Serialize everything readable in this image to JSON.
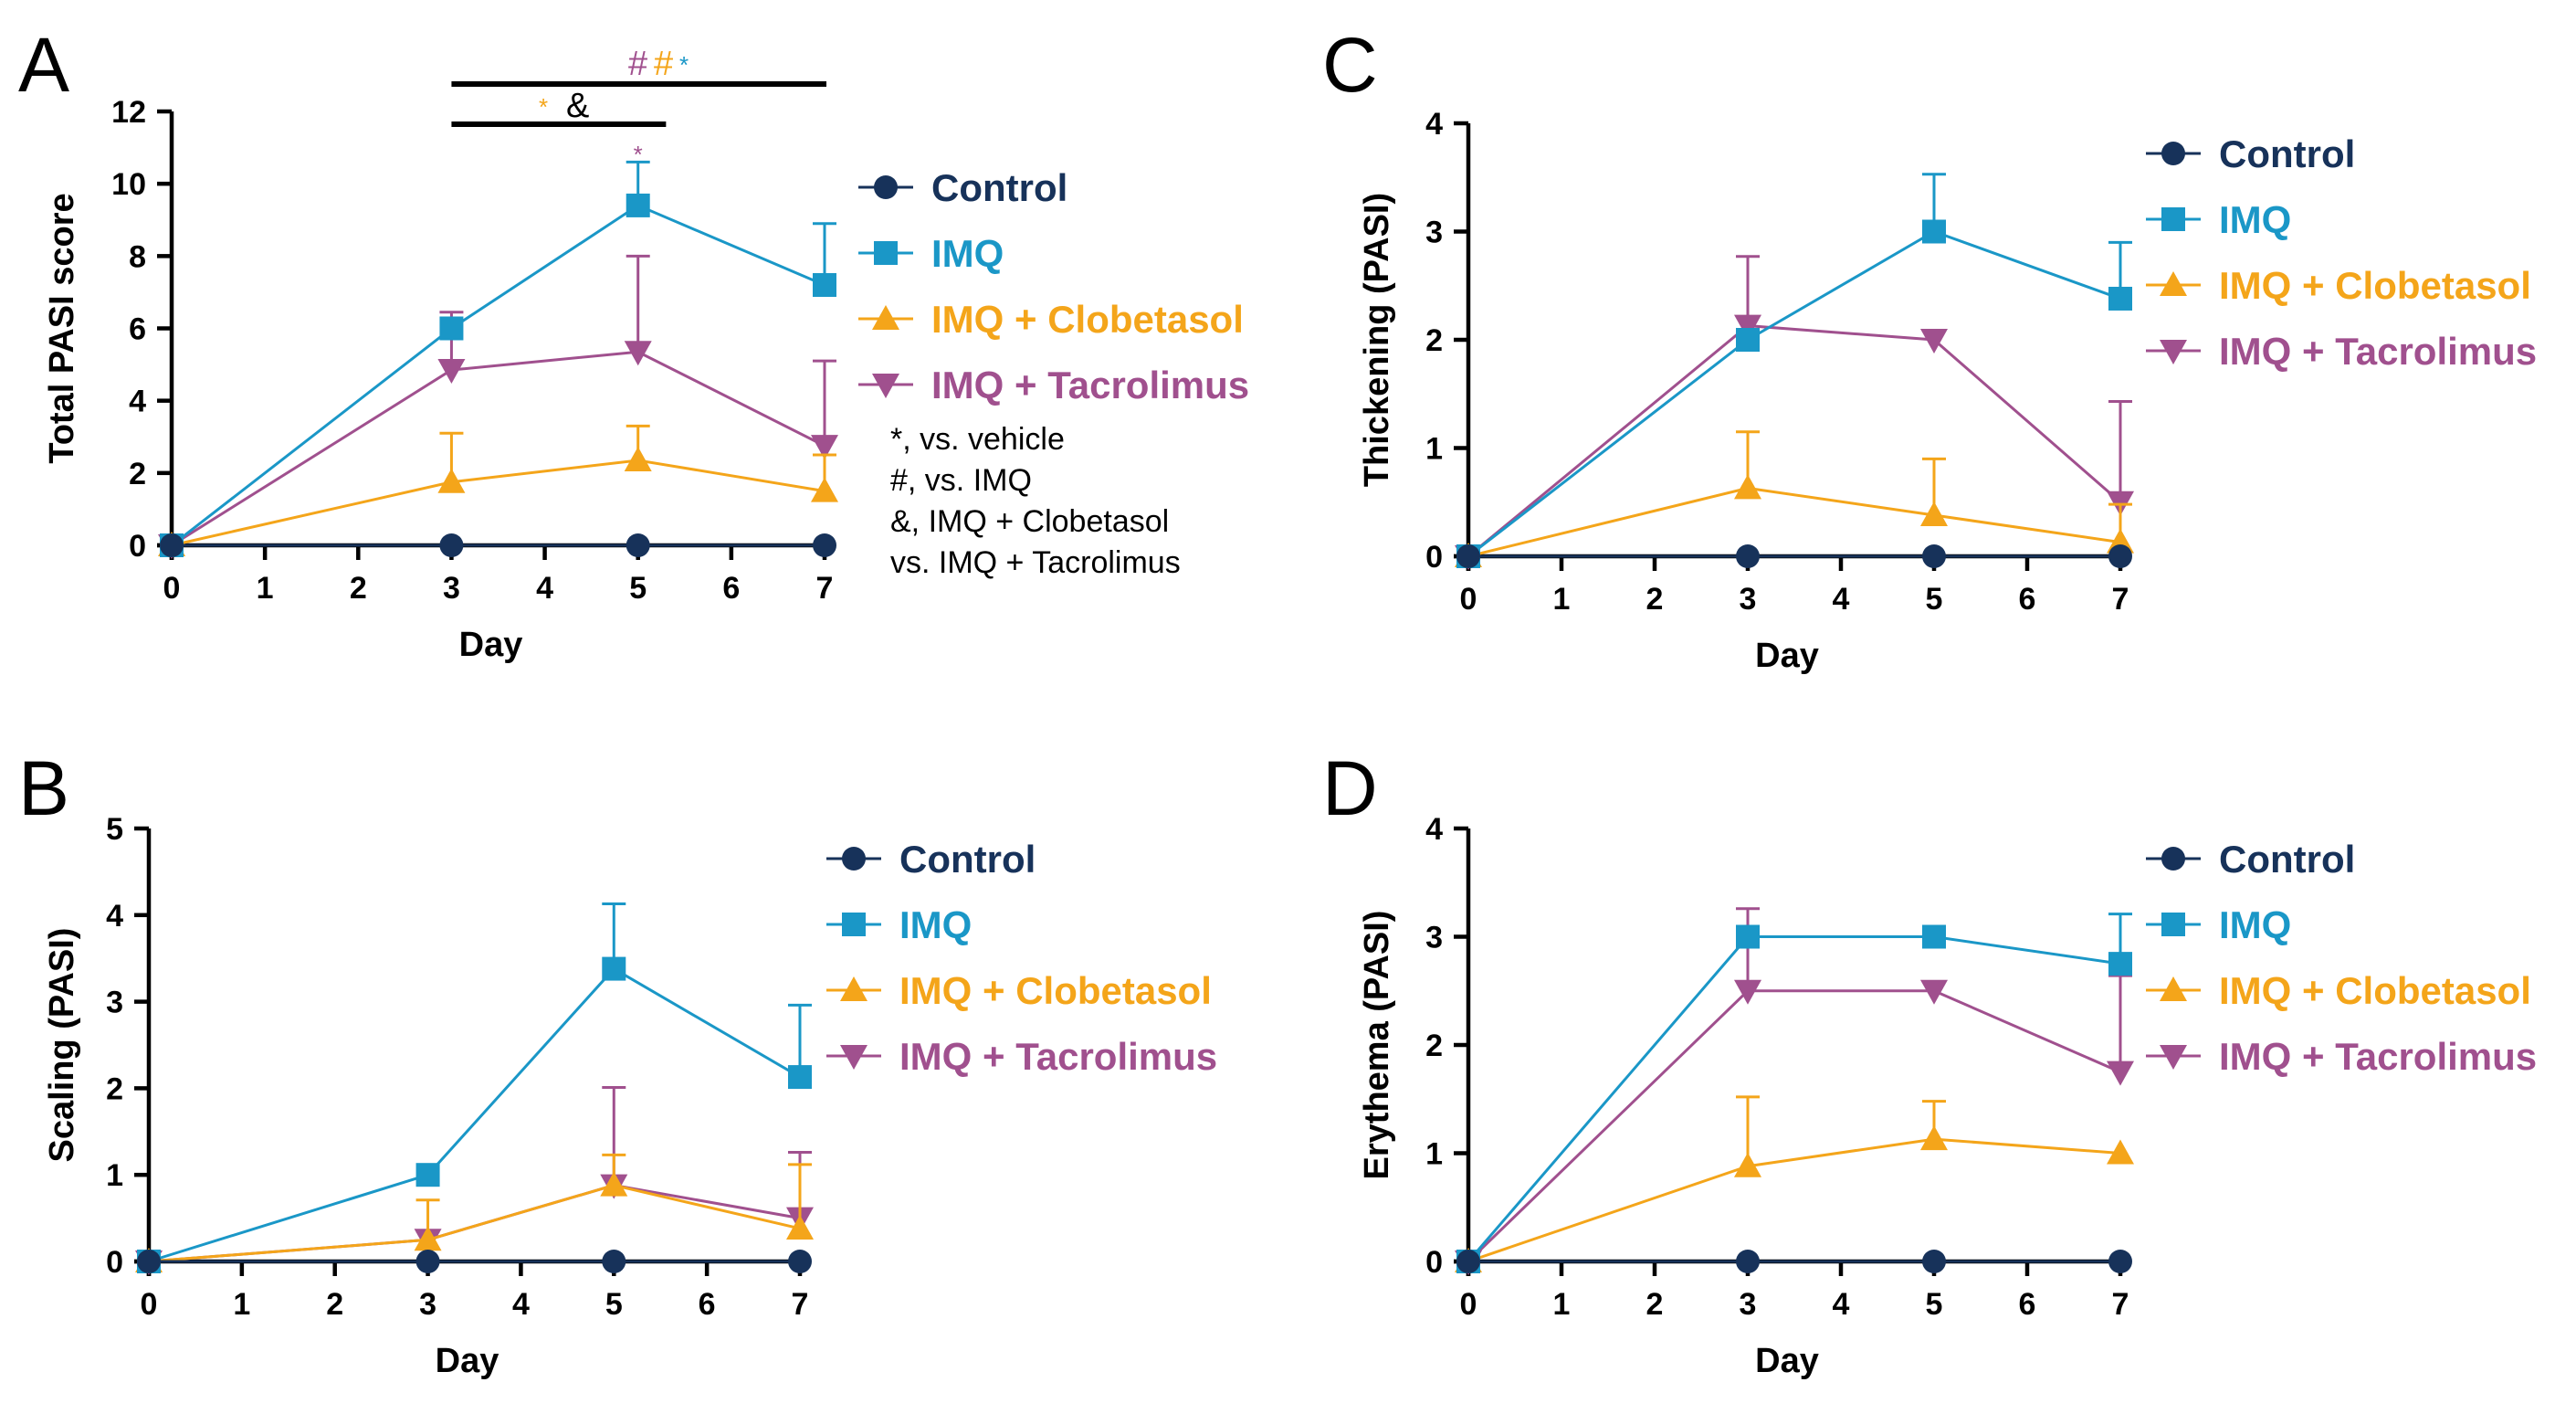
{
  "colors": {
    "Control": "#17325a",
    "IMQ": "#1a97c7",
    "IMQ + Clobetasol": "#f4a51a",
    "IMQ + Tacrolimus": "#a0508e"
  },
  "chart_data": [
    {
      "type": "line",
      "panel": "A",
      "xlabel": "Day",
      "ylabel": "Total PASI score",
      "x_ticks": [
        "0",
        "1",
        "2",
        "3",
        "4",
        "5",
        "6",
        "7"
      ],
      "y_ticks": [
        "0",
        "2",
        "4",
        "6",
        "8",
        "10",
        "12"
      ],
      "xlim": [
        0,
        7
      ],
      "ylim": [
        0,
        12
      ],
      "x": [
        0,
        3,
        5,
        7
      ],
      "series": [
        {
          "name": "Control",
          "marker": "circle",
          "values": [
            0,
            0,
            0,
            0
          ],
          "errors": [
            0,
            0,
            0,
            0
          ]
        },
        {
          "name": "IMQ",
          "marker": "square",
          "values": [
            0,
            6.0,
            9.4,
            7.2
          ],
          "errors": [
            0,
            0,
            1.2,
            1.7
          ]
        },
        {
          "name": "IMQ + Clobetasol",
          "marker": "triangle-up",
          "values": [
            0,
            1.75,
            2.35,
            1.5
          ],
          "errors": [
            0,
            1.35,
            0.95,
            1.0
          ]
        },
        {
          "name": "IMQ + Tacrolimus",
          "marker": "triangle-down",
          "values": [
            0,
            4.85,
            5.35,
            2.75
          ],
          "errors": [
            0,
            1.6,
            2.65,
            2.35
          ]
        }
      ],
      "significance": {
        "long_bar_symbols": [
          {
            "text": "#",
            "series": "IMQ + Tacrolimus"
          },
          {
            "text": "#",
            "series": "IMQ + Clobetasol"
          },
          {
            "text": "*",
            "series": "IMQ"
          }
        ],
        "short_bar_symbols": [
          {
            "text": "*",
            "series": "IMQ + Clobetasol"
          },
          {
            "text": "&",
            "series": "Control"
          }
        ],
        "point_symbol": {
          "text": "*",
          "series": "IMQ + Tacrolimus"
        }
      },
      "notes": [
        "*, vs. vehicle",
        "#, vs. IMQ",
        "&, IMQ + Clobetasol",
        "vs. IMQ + Tacrolimus"
      ]
    },
    {
      "type": "line",
      "panel": "B",
      "xlabel": "Day",
      "ylabel": "Scaling (PASI)",
      "x_ticks": [
        "0",
        "1",
        "2",
        "3",
        "4",
        "5",
        "6",
        "7"
      ],
      "y_ticks": [
        "0",
        "1",
        "2",
        "3",
        "4",
        "5"
      ],
      "xlim": [
        0,
        7
      ],
      "ylim": [
        0,
        5
      ],
      "x": [
        0,
        3,
        5,
        7
      ],
      "series": [
        {
          "name": "Control",
          "marker": "circle",
          "values": [
            0,
            0,
            0,
            0
          ],
          "errors": [
            0,
            0,
            0,
            0
          ]
        },
        {
          "name": "IMQ",
          "marker": "square",
          "values": [
            0,
            1.0,
            3.38,
            2.13
          ],
          "errors": [
            0,
            0,
            0.75,
            0.83
          ]
        },
        {
          "name": "IMQ + Clobetasol",
          "marker": "triangle-up",
          "values": [
            0,
            0.25,
            0.88,
            0.38
          ],
          "errors": [
            0,
            0.46,
            0.35,
            0.74
          ]
        },
        {
          "name": "IMQ + Tacrolimus",
          "marker": "triangle-down",
          "values": [
            0,
            0.25,
            0.88,
            0.5
          ],
          "errors": [
            0,
            0.1,
            1.13,
            0.76
          ]
        }
      ]
    },
    {
      "type": "line",
      "panel": "C",
      "xlabel": "Day",
      "ylabel": "Thickening (PASI)",
      "x_ticks": [
        "0",
        "1",
        "2",
        "3",
        "4",
        "5",
        "6",
        "7"
      ],
      "y_ticks": [
        "0",
        "1",
        "2",
        "3",
        "4"
      ],
      "xlim": [
        0,
        7
      ],
      "ylim": [
        0,
        4
      ],
      "x": [
        0,
        3,
        5,
        7
      ],
      "series": [
        {
          "name": "Control",
          "marker": "circle",
          "values": [
            0,
            0,
            0,
            0
          ],
          "errors": [
            0,
            0,
            0,
            0
          ]
        },
        {
          "name": "IMQ",
          "marker": "square",
          "values": [
            0,
            2.0,
            3.0,
            2.38
          ],
          "errors": [
            0,
            0,
            0.53,
            0.52
          ]
        },
        {
          "name": "IMQ + Clobetasol",
          "marker": "triangle-up",
          "values": [
            0,
            0.63,
            0.38,
            0.13
          ],
          "errors": [
            0,
            0.52,
            0.52,
            0.35
          ]
        },
        {
          "name": "IMQ + Tacrolimus",
          "marker": "triangle-down",
          "values": [
            0,
            2.13,
            2.0,
            0.5
          ],
          "errors": [
            0,
            0.64,
            0,
            0.93
          ]
        }
      ]
    },
    {
      "type": "line",
      "panel": "D",
      "xlabel": "Day",
      "ylabel": "Erythema (PASI)",
      "x_ticks": [
        "0",
        "1",
        "2",
        "3",
        "4",
        "5",
        "6",
        "7"
      ],
      "y_ticks": [
        "0",
        "1",
        "2",
        "3",
        "4"
      ],
      "xlim": [
        0,
        7
      ],
      "ylim": [
        0,
        4
      ],
      "x": [
        0,
        3,
        5,
        7
      ],
      "series": [
        {
          "name": "Control",
          "marker": "circle",
          "values": [
            0,
            0,
            0,
            0
          ],
          "errors": [
            0,
            0,
            0,
            0
          ]
        },
        {
          "name": "IMQ",
          "marker": "square",
          "values": [
            0,
            3.0,
            3.0,
            2.75
          ],
          "errors": [
            0,
            0,
            0,
            0.46
          ]
        },
        {
          "name": "IMQ + Clobetasol",
          "marker": "triangle-up",
          "values": [
            0,
            0.88,
            1.13,
            1.0
          ],
          "errors": [
            0,
            0.64,
            0.35,
            0
          ]
        },
        {
          "name": "IMQ + Tacrolimus",
          "marker": "triangle-down",
          "values": [
            0,
            2.5,
            2.5,
            1.75
          ],
          "errors": [
            0,
            0.76,
            0,
            0.89
          ]
        }
      ]
    }
  ]
}
